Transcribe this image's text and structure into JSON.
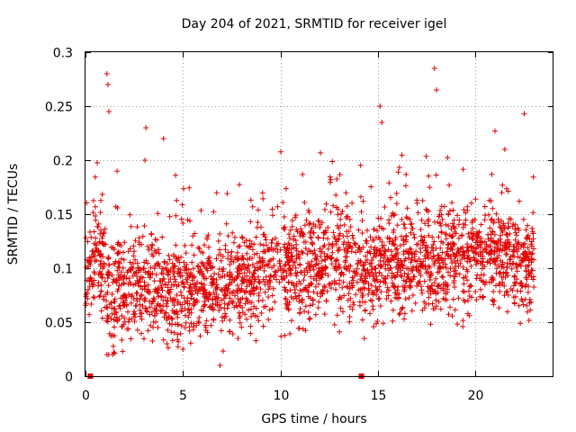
{
  "chart_data": {
    "type": "scatter",
    "title": "Day 204 of 2021, SRMTID for receiver igel",
    "xlabel": "GPS time / hours",
    "ylabel": "SRMTID / TECUs",
    "xlim": [
      0,
      24
    ],
    "ylim": [
      0,
      0.3
    ],
    "xticks": [
      0,
      5,
      10,
      15,
      20
    ],
    "yticks": [
      0,
      0.05,
      0.1,
      0.15,
      0.2,
      0.25,
      0.3
    ],
    "ytick_labels": [
      "0",
      "0.05",
      "0.1",
      "0.15",
      "0.2",
      "0.25",
      "0.3"
    ],
    "grid": true,
    "marker": "+",
    "color": "#e00000",
    "notable_points": [
      {
        "x": 1.1,
        "y": 0.28
      },
      {
        "x": 1.15,
        "y": 0.27
      },
      {
        "x": 1.2,
        "y": 0.245
      },
      {
        "x": 3.1,
        "y": 0.23
      },
      {
        "x": 3.05,
        "y": 0.2
      },
      {
        "x": 4.0,
        "y": 0.22
      },
      {
        "x": 5.0,
        "y": 0.025
      },
      {
        "x": 6.9,
        "y": 0.01
      },
      {
        "x": 15.1,
        "y": 0.25
      },
      {
        "x": 15.2,
        "y": 0.235
      },
      {
        "x": 17.9,
        "y": 0.285
      },
      {
        "x": 18.0,
        "y": 0.265
      },
      {
        "x": 22.5,
        "y": 0.243
      },
      {
        "x": 21.0,
        "y": 0.227
      },
      {
        "x": 14.3,
        "y": 0.035
      }
    ],
    "baseline_markers_x": [
      0.25,
      14.15
    ],
    "data_x_range": [
      0,
      23
    ],
    "typical_y_range": [
      0.05,
      0.15
    ],
    "scatter_points_approx": 2600
  }
}
